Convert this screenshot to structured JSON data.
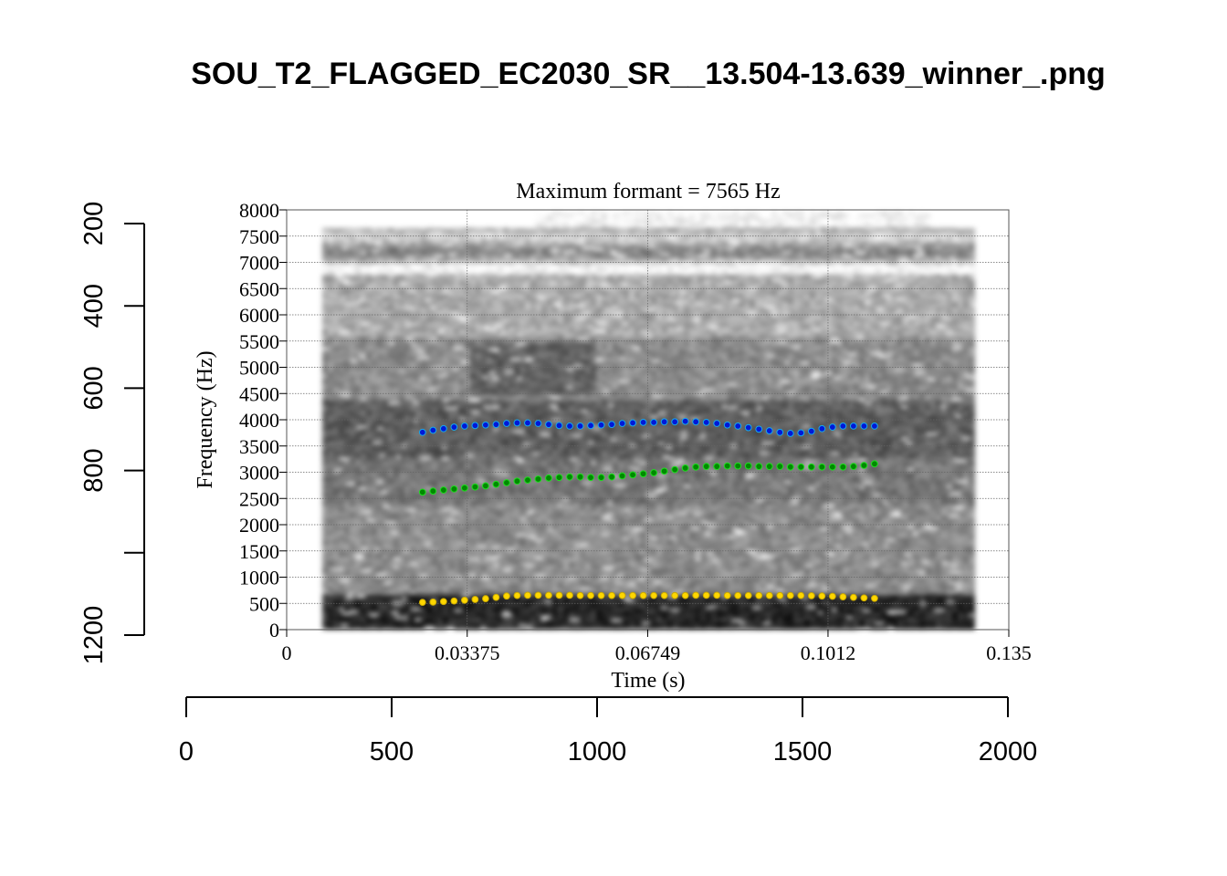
{
  "page_title": "SOU_T2_FLAGGED_EC2030_SR__13.504-13.639_winner_.png",
  "chart_data": {
    "type": "scatter",
    "title": "Maximum formant  =  7565 Hz",
    "xlabel": "Time (s)",
    "ylabel": "Frequency (Hz)",
    "xlim": [
      0,
      0.135
    ],
    "ylim": [
      0,
      8000
    ],
    "x_ticks": [
      "0",
      "0.03375",
      "0.06749",
      "0.1012",
      "0.135"
    ],
    "x_tick_values": [
      0,
      0.03375,
      0.06749,
      0.1012,
      0.135
    ],
    "y_ticks": [
      "0",
      "500",
      "1000",
      "1500",
      "2000",
      "2500",
      "3000",
      "3500",
      "4000",
      "4500",
      "5000",
      "5500",
      "6000",
      "6500",
      "7000",
      "7500",
      "8000"
    ],
    "grid": true,
    "time_start": 0.0254,
    "time_step": 0.001965,
    "series": [
      {
        "name": "F1",
        "color": "#ffd700",
        "edge": "#c8a800",
        "values": [
          520,
          525,
          535,
          545,
          560,
          575,
          590,
          615,
          640,
          650,
          655,
          655,
          655,
          655,
          655,
          650,
          650,
          650,
          650,
          650,
          650,
          650,
          650,
          650,
          650,
          650,
          655,
          655,
          655,
          650,
          650,
          650,
          650,
          650,
          650,
          650,
          650,
          645,
          640,
          635,
          625,
          615,
          605,
          595
        ]
      },
      {
        "name": "F2",
        "color": "#008a00",
        "edge": "#22dd22",
        "values": [
          2620,
          2640,
          2660,
          2680,
          2700,
          2720,
          2740,
          2770,
          2800,
          2830,
          2850,
          2870,
          2890,
          2900,
          2910,
          2910,
          2900,
          2900,
          2910,
          2930,
          2950,
          2970,
          2990,
          3020,
          3050,
          3080,
          3100,
          3110,
          3110,
          3120,
          3120,
          3120,
          3110,
          3110,
          3110,
          3100,
          3100,
          3100,
          3100,
          3100,
          3100,
          3110,
          3130,
          3160
        ]
      },
      {
        "name": "F3",
        "color": "#0018d8",
        "edge": "#19a8e8",
        "values": [
          3760,
          3800,
          3830,
          3860,
          3880,
          3890,
          3900,
          3910,
          3930,
          3940,
          3940,
          3930,
          3910,
          3890,
          3880,
          3880,
          3890,
          3900,
          3910,
          3930,
          3940,
          3950,
          3950,
          3960,
          3960,
          3970,
          3960,
          3950,
          3930,
          3900,
          3880,
          3850,
          3820,
          3790,
          3760,
          3740,
          3750,
          3780,
          3830,
          3860,
          3880,
          3880,
          3880,
          3880
        ]
      }
    ],
    "outer_left_axis": {
      "ticks": [
        "200",
        "400",
        "600",
        "800",
        "",
        "1200"
      ],
      "values": [
        200,
        400,
        600,
        800,
        1000,
        1200
      ]
    },
    "outer_bottom_axis": {
      "ticks": [
        "0",
        "500",
        "1000",
        "1500",
        "2000"
      ],
      "values": [
        0,
        500,
        1000,
        1500,
        2000
      ]
    }
  }
}
